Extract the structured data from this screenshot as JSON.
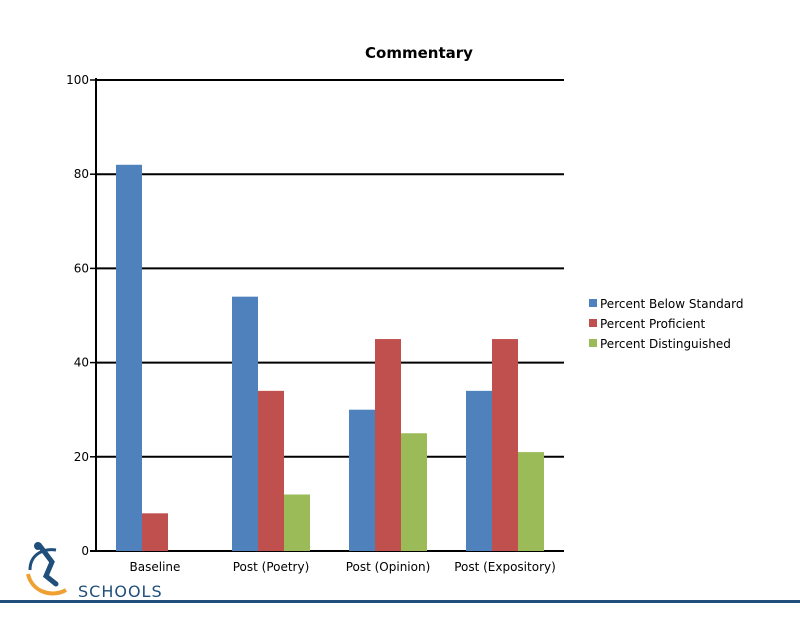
{
  "chart_data": {
    "type": "bar",
    "title": "Commentary",
    "xlabel": "",
    "ylabel": "",
    "ylim": [
      0,
      100
    ],
    "yticks": [
      0,
      20,
      40,
      60,
      80,
      100
    ],
    "grid": true,
    "legend_position": "right",
    "categories": [
      "Baseline",
      "Post (Poetry)",
      "Post (Opinion)",
      "Post (Expository)"
    ],
    "series": [
      {
        "name": "Percent Below Standard",
        "color": "#4f81bd",
        "values": [
          82,
          54,
          30,
          34
        ]
      },
      {
        "name": "Percent Proficient",
        "color": "#c0504d",
        "values": [
          8,
          34,
          45,
          45
        ]
      },
      {
        "name": "Percent Distinguished",
        "color": "#9bbb59",
        "values": [
          0,
          12,
          25,
          21
        ]
      }
    ]
  },
  "footer": {
    "logo_text": "SCHOOLS",
    "line_color": "#1f4f7a"
  }
}
